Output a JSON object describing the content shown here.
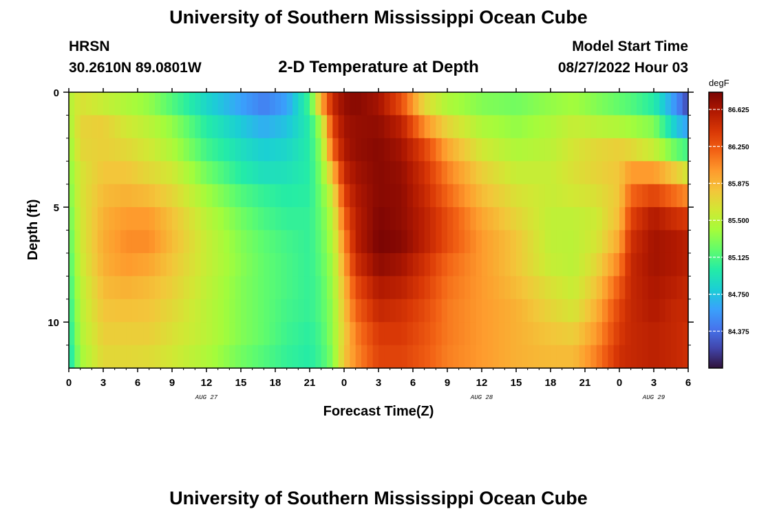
{
  "header": {
    "title": "University of Southern Mississippi Ocean Cube",
    "station": "HRSN",
    "coords": "30.2610N  89.0801W",
    "subtitle": "2-D Temperature at Depth",
    "start_label": "Model Start Time",
    "start_value": "08/27/2022 Hour 03"
  },
  "footer": {
    "title": "University of Southern Mississippi Ocean Cube"
  },
  "chart_data": {
    "type": "heatmap",
    "title": "2-D Temperature at Depth",
    "xlabel": "Forecast Time(Z)",
    "ylabel": "Depth (ft)",
    "xlim": [
      0,
      54
    ],
    "ylim": [
      0,
      12
    ],
    "x_ticks": [
      {
        "h": 0,
        "label": "0"
      },
      {
        "h": 3,
        "label": "3"
      },
      {
        "h": 6,
        "label": "6"
      },
      {
        "h": 9,
        "label": "9"
      },
      {
        "h": 12,
        "label": "12"
      },
      {
        "h": 15,
        "label": "15"
      },
      {
        "h": 18,
        "label": "18"
      },
      {
        "h": 21,
        "label": "21"
      },
      {
        "h": 24,
        "label": "0"
      },
      {
        "h": 27,
        "label": "3"
      },
      {
        "h": 30,
        "label": "6"
      },
      {
        "h": 33,
        "label": "9"
      },
      {
        "h": 36,
        "label": "12"
      },
      {
        "h": 39,
        "label": "15"
      },
      {
        "h": 42,
        "label": "18"
      },
      {
        "h": 45,
        "label": "21"
      },
      {
        "h": 48,
        "label": "0"
      },
      {
        "h": 51,
        "label": "3"
      },
      {
        "h": 54,
        "label": "6"
      }
    ],
    "date_labels": [
      {
        "h": 12,
        "label": "AUG 27"
      },
      {
        "h": 36,
        "label": "AUG 28"
      },
      {
        "h": 51,
        "label": "AUG 29"
      }
    ],
    "y_ticks": [
      {
        "d": 0,
        "label": "0"
      },
      {
        "d": 5,
        "label": "5"
      },
      {
        "d": 10,
        "label": "10"
      }
    ],
    "colorbar": {
      "unit": "degF",
      "min": 84.0,
      "max": 86.8,
      "ticks": [
        {
          "v": 86.625,
          "label": "86.625"
        },
        {
          "v": 86.25,
          "label": "86.250"
        },
        {
          "v": 85.875,
          "label": "85.875"
        },
        {
          "v": 85.5,
          "label": "85.500"
        },
        {
          "v": 85.125,
          "label": "85.125"
        },
        {
          "v": 84.75,
          "label": "84.750"
        },
        {
          "v": 84.375,
          "label": "84.375"
        }
      ]
    },
    "depth_rows": [
      0.5,
      1.5,
      2.5,
      3.5,
      4.5,
      5.5,
      6.5,
      7.5,
      8.5,
      9.5,
      10.5,
      11.5
    ],
    "profiles": [
      {
        "h": 0,
        "values": [
          85.45,
          85.4,
          85.35,
          85.3,
          85.25,
          85.2,
          85.15,
          85.1,
          85.05,
          85.0,
          84.95,
          84.9
        ]
      },
      {
        "h": 1,
        "values": [
          85.65,
          85.72,
          85.7,
          85.62,
          85.62,
          85.6,
          85.58,
          85.55,
          85.5,
          85.48,
          85.45,
          85.4
        ]
      },
      {
        "h": 3,
        "values": [
          85.55,
          85.75,
          85.75,
          85.8,
          85.85,
          85.9,
          85.92,
          85.9,
          85.85,
          85.8,
          85.75,
          85.7
        ]
      },
      {
        "h": 5,
        "values": [
          85.45,
          85.6,
          85.7,
          85.8,
          85.9,
          86.0,
          86.05,
          86.0,
          85.9,
          85.82,
          85.75,
          85.7
        ]
      },
      {
        "h": 7,
        "values": [
          85.35,
          85.5,
          85.6,
          85.7,
          85.85,
          86.0,
          86.05,
          85.95,
          85.85,
          85.8,
          85.75,
          85.68
        ]
      },
      {
        "h": 9,
        "values": [
          85.15,
          85.35,
          85.45,
          85.6,
          85.72,
          85.82,
          85.85,
          85.8,
          85.75,
          85.7,
          85.65,
          85.6
        ]
      },
      {
        "h": 12,
        "values": [
          84.85,
          85.0,
          85.1,
          85.25,
          85.4,
          85.5,
          85.55,
          85.55,
          85.52,
          85.5,
          85.5,
          85.45
        ]
      },
      {
        "h": 15,
        "values": [
          84.6,
          84.78,
          84.9,
          85.0,
          85.15,
          85.25,
          85.3,
          85.32,
          85.3,
          85.3,
          85.3,
          85.25
        ]
      },
      {
        "h": 17,
        "values": [
          84.45,
          84.65,
          84.8,
          84.9,
          85.05,
          85.12,
          85.18,
          85.2,
          85.2,
          85.2,
          85.2,
          85.15
        ]
      },
      {
        "h": 19,
        "values": [
          84.6,
          84.75,
          84.85,
          84.92,
          85.0,
          85.05,
          85.1,
          85.12,
          85.12,
          85.1,
          85.08,
          85.05
        ]
      },
      {
        "h": 21,
        "values": [
          85.1,
          85.0,
          85.0,
          85.0,
          85.02,
          85.05,
          85.05,
          85.05,
          85.05,
          85.05,
          85.02,
          85.0
        ]
      },
      {
        "h": 22,
        "values": [
          85.9,
          85.45,
          85.35,
          85.3,
          85.25,
          85.22,
          85.2,
          85.18,
          85.15,
          85.15,
          85.12,
          85.1
        ]
      },
      {
        "h": 23,
        "values": [
          86.5,
          86.35,
          86.2,
          85.85,
          85.6,
          85.5,
          85.45,
          85.4,
          85.38,
          85.35,
          85.35,
          85.3
        ]
      },
      {
        "h": 24,
        "values": [
          86.7,
          86.65,
          86.6,
          86.5,
          86.35,
          86.2,
          86.05,
          85.95,
          85.85,
          85.8,
          85.75,
          85.8
        ]
      },
      {
        "h": 25,
        "values": [
          86.75,
          86.7,
          86.7,
          86.65,
          86.6,
          86.55,
          86.55,
          86.45,
          86.3,
          86.2,
          86.1,
          86.05
        ]
      },
      {
        "h": 27,
        "values": [
          86.65,
          86.72,
          86.75,
          86.75,
          86.75,
          86.78,
          86.8,
          86.72,
          86.6,
          86.5,
          86.4,
          86.35
        ]
      },
      {
        "h": 29,
        "values": [
          86.3,
          86.55,
          86.65,
          86.7,
          86.72,
          86.72,
          86.75,
          86.65,
          86.55,
          86.45,
          86.4,
          86.35
        ]
      },
      {
        "h": 31,
        "values": [
          85.7,
          86.05,
          86.35,
          86.45,
          86.5,
          86.55,
          86.55,
          86.45,
          86.38,
          86.32,
          86.28,
          86.25
        ]
      },
      {
        "h": 33,
        "values": [
          85.45,
          85.72,
          85.95,
          86.1,
          86.2,
          86.3,
          86.3,
          86.2,
          86.15,
          86.12,
          86.12,
          86.1
        ]
      },
      {
        "h": 36,
        "values": [
          85.3,
          85.45,
          85.6,
          85.75,
          85.85,
          85.95,
          86.0,
          86.0,
          86.0,
          86.0,
          86.0,
          86.0
        ]
      },
      {
        "h": 39,
        "values": [
          85.25,
          85.35,
          85.45,
          85.55,
          85.65,
          85.72,
          85.8,
          85.8,
          85.85,
          85.9,
          85.9,
          85.9
        ]
      },
      {
        "h": 42,
        "values": [
          85.35,
          85.45,
          85.5,
          85.55,
          85.55,
          85.52,
          85.52,
          85.55,
          85.65,
          85.72,
          85.8,
          85.85
        ]
      },
      {
        "h": 44,
        "values": [
          85.4,
          85.55,
          85.62,
          85.65,
          85.6,
          85.52,
          85.5,
          85.5,
          85.55,
          85.62,
          85.75,
          85.85
        ]
      },
      {
        "h": 46,
        "values": [
          85.3,
          85.5,
          85.7,
          85.72,
          85.65,
          85.58,
          85.62,
          85.7,
          85.8,
          85.9,
          86.0,
          86.1
        ]
      },
      {
        "h": 48,
        "values": [
          85.2,
          85.45,
          85.75,
          85.8,
          85.8,
          85.85,
          85.95,
          86.1,
          86.25,
          86.35,
          86.4,
          86.45
        ]
      },
      {
        "h": 49,
        "values": [
          85.15,
          85.4,
          85.7,
          86.0,
          86.2,
          86.35,
          86.45,
          86.5,
          86.5,
          86.5,
          86.5,
          86.5
        ]
      },
      {
        "h": 51,
        "values": [
          85.0,
          85.3,
          85.55,
          86.0,
          86.35,
          86.6,
          86.65,
          86.65,
          86.62,
          86.6,
          86.55,
          86.55
        ]
      },
      {
        "h": 53,
        "values": [
          84.5,
          84.75,
          85.2,
          85.75,
          86.15,
          86.45,
          86.6,
          86.6,
          86.55,
          86.5,
          86.5,
          86.5
        ]
      },
      {
        "h": 54,
        "values": [
          84.2,
          84.6,
          85.1,
          85.6,
          86.05,
          86.4,
          86.55,
          86.55,
          86.5,
          86.5,
          86.45,
          86.45
        ]
      }
    ],
    "colormap": [
      "#30123b",
      "#4145ab",
      "#4675ed",
      "#39a2fc",
      "#1bcfd4",
      "#24eca6",
      "#61fc6c",
      "#a4fc3b",
      "#d1e834",
      "#f3c63a",
      "#fe9b2d",
      "#f36315",
      "#d93806",
      "#b11901",
      "#7a0403"
    ]
  }
}
